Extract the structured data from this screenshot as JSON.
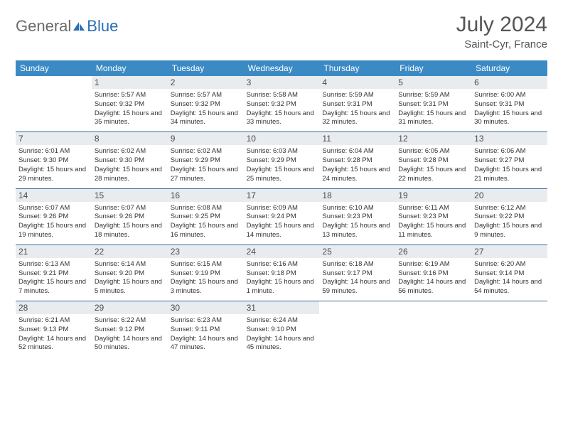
{
  "logo": {
    "general": "General",
    "blue": "Blue"
  },
  "title": "July 2024",
  "location": "Saint-Cyr, France",
  "day_headers": [
    "Sunday",
    "Monday",
    "Tuesday",
    "Wednesday",
    "Thursday",
    "Friday",
    "Saturday"
  ],
  "colors": {
    "header_bg": "#3b8ac4",
    "header_text": "#ffffff",
    "daynum_bg": "#e9ecef",
    "week_border": "#3b6a9a",
    "logo_gray": "#6b6b6b",
    "logo_blue": "#2c6fb5"
  },
  "weeks": [
    [
      {
        "n": "",
        "sr": "",
        "ss": "",
        "dl": ""
      },
      {
        "n": "1",
        "sr": "Sunrise: 5:57 AM",
        "ss": "Sunset: 9:32 PM",
        "dl": "Daylight: 15 hours and 35 minutes."
      },
      {
        "n": "2",
        "sr": "Sunrise: 5:57 AM",
        "ss": "Sunset: 9:32 PM",
        "dl": "Daylight: 15 hours and 34 minutes."
      },
      {
        "n": "3",
        "sr": "Sunrise: 5:58 AM",
        "ss": "Sunset: 9:32 PM",
        "dl": "Daylight: 15 hours and 33 minutes."
      },
      {
        "n": "4",
        "sr": "Sunrise: 5:59 AM",
        "ss": "Sunset: 9:31 PM",
        "dl": "Daylight: 15 hours and 32 minutes."
      },
      {
        "n": "5",
        "sr": "Sunrise: 5:59 AM",
        "ss": "Sunset: 9:31 PM",
        "dl": "Daylight: 15 hours and 31 minutes."
      },
      {
        "n": "6",
        "sr": "Sunrise: 6:00 AM",
        "ss": "Sunset: 9:31 PM",
        "dl": "Daylight: 15 hours and 30 minutes."
      }
    ],
    [
      {
        "n": "7",
        "sr": "Sunrise: 6:01 AM",
        "ss": "Sunset: 9:30 PM",
        "dl": "Daylight: 15 hours and 29 minutes."
      },
      {
        "n": "8",
        "sr": "Sunrise: 6:02 AM",
        "ss": "Sunset: 9:30 PM",
        "dl": "Daylight: 15 hours and 28 minutes."
      },
      {
        "n": "9",
        "sr": "Sunrise: 6:02 AM",
        "ss": "Sunset: 9:29 PM",
        "dl": "Daylight: 15 hours and 27 minutes."
      },
      {
        "n": "10",
        "sr": "Sunrise: 6:03 AM",
        "ss": "Sunset: 9:29 PM",
        "dl": "Daylight: 15 hours and 25 minutes."
      },
      {
        "n": "11",
        "sr": "Sunrise: 6:04 AM",
        "ss": "Sunset: 9:28 PM",
        "dl": "Daylight: 15 hours and 24 minutes."
      },
      {
        "n": "12",
        "sr": "Sunrise: 6:05 AM",
        "ss": "Sunset: 9:28 PM",
        "dl": "Daylight: 15 hours and 22 minutes."
      },
      {
        "n": "13",
        "sr": "Sunrise: 6:06 AM",
        "ss": "Sunset: 9:27 PM",
        "dl": "Daylight: 15 hours and 21 minutes."
      }
    ],
    [
      {
        "n": "14",
        "sr": "Sunrise: 6:07 AM",
        "ss": "Sunset: 9:26 PM",
        "dl": "Daylight: 15 hours and 19 minutes."
      },
      {
        "n": "15",
        "sr": "Sunrise: 6:07 AM",
        "ss": "Sunset: 9:26 PM",
        "dl": "Daylight: 15 hours and 18 minutes."
      },
      {
        "n": "16",
        "sr": "Sunrise: 6:08 AM",
        "ss": "Sunset: 9:25 PM",
        "dl": "Daylight: 15 hours and 16 minutes."
      },
      {
        "n": "17",
        "sr": "Sunrise: 6:09 AM",
        "ss": "Sunset: 9:24 PM",
        "dl": "Daylight: 15 hours and 14 minutes."
      },
      {
        "n": "18",
        "sr": "Sunrise: 6:10 AM",
        "ss": "Sunset: 9:23 PM",
        "dl": "Daylight: 15 hours and 13 minutes."
      },
      {
        "n": "19",
        "sr": "Sunrise: 6:11 AM",
        "ss": "Sunset: 9:23 PM",
        "dl": "Daylight: 15 hours and 11 minutes."
      },
      {
        "n": "20",
        "sr": "Sunrise: 6:12 AM",
        "ss": "Sunset: 9:22 PM",
        "dl": "Daylight: 15 hours and 9 minutes."
      }
    ],
    [
      {
        "n": "21",
        "sr": "Sunrise: 6:13 AM",
        "ss": "Sunset: 9:21 PM",
        "dl": "Daylight: 15 hours and 7 minutes."
      },
      {
        "n": "22",
        "sr": "Sunrise: 6:14 AM",
        "ss": "Sunset: 9:20 PM",
        "dl": "Daylight: 15 hours and 5 minutes."
      },
      {
        "n": "23",
        "sr": "Sunrise: 6:15 AM",
        "ss": "Sunset: 9:19 PM",
        "dl": "Daylight: 15 hours and 3 minutes."
      },
      {
        "n": "24",
        "sr": "Sunrise: 6:16 AM",
        "ss": "Sunset: 9:18 PM",
        "dl": "Daylight: 15 hours and 1 minute."
      },
      {
        "n": "25",
        "sr": "Sunrise: 6:18 AM",
        "ss": "Sunset: 9:17 PM",
        "dl": "Daylight: 14 hours and 59 minutes."
      },
      {
        "n": "26",
        "sr": "Sunrise: 6:19 AM",
        "ss": "Sunset: 9:16 PM",
        "dl": "Daylight: 14 hours and 56 minutes."
      },
      {
        "n": "27",
        "sr": "Sunrise: 6:20 AM",
        "ss": "Sunset: 9:14 PM",
        "dl": "Daylight: 14 hours and 54 minutes."
      }
    ],
    [
      {
        "n": "28",
        "sr": "Sunrise: 6:21 AM",
        "ss": "Sunset: 9:13 PM",
        "dl": "Daylight: 14 hours and 52 minutes."
      },
      {
        "n": "29",
        "sr": "Sunrise: 6:22 AM",
        "ss": "Sunset: 9:12 PM",
        "dl": "Daylight: 14 hours and 50 minutes."
      },
      {
        "n": "30",
        "sr": "Sunrise: 6:23 AM",
        "ss": "Sunset: 9:11 PM",
        "dl": "Daylight: 14 hours and 47 minutes."
      },
      {
        "n": "31",
        "sr": "Sunrise: 6:24 AM",
        "ss": "Sunset: 9:10 PM",
        "dl": "Daylight: 14 hours and 45 minutes."
      },
      {
        "n": "",
        "sr": "",
        "ss": "",
        "dl": ""
      },
      {
        "n": "",
        "sr": "",
        "ss": "",
        "dl": ""
      },
      {
        "n": "",
        "sr": "",
        "ss": "",
        "dl": ""
      }
    ]
  ]
}
